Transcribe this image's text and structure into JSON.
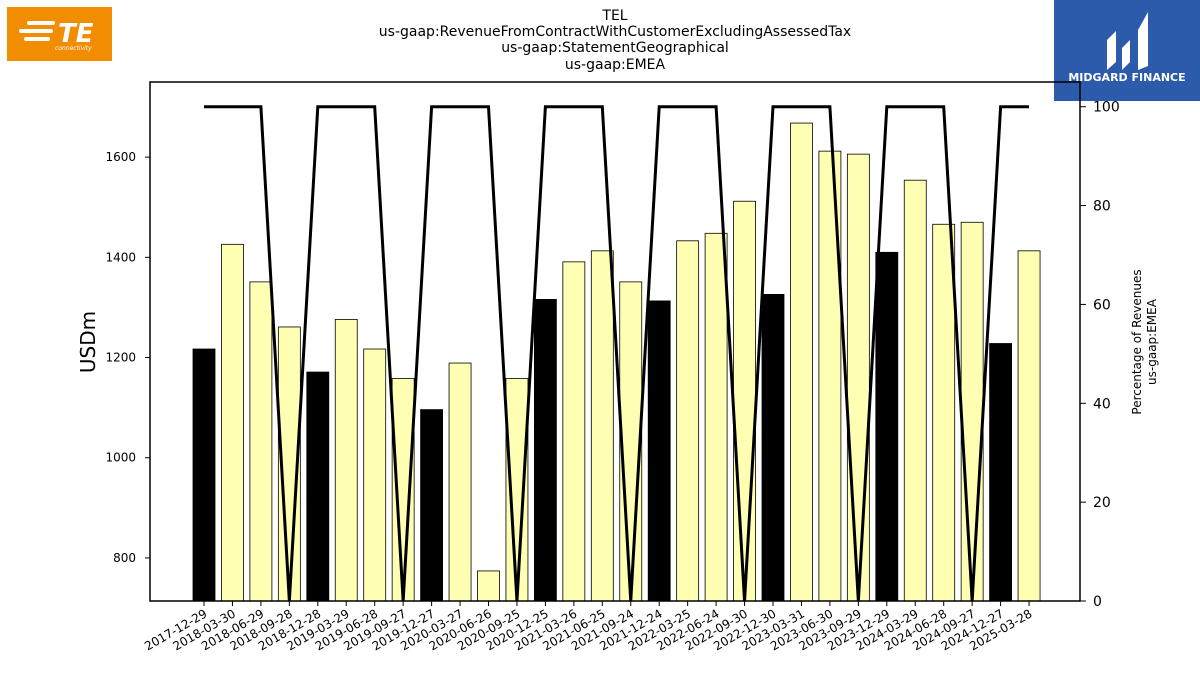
{
  "title_lines": [
    "TEL",
    "us-gaap:RevenueFromContractWithCustomerExcludingAssessedTax",
    "us-gaap:StatementGeographical",
    "us-gaap:EMEA"
  ],
  "logo_left": {
    "icon": "te-connectivity-logo",
    "text": "TE",
    "subtext": "connectivity",
    "color": "#F28C00"
  },
  "logo_right": {
    "icon": "midgard-finance-logo",
    "text": "MIDGARD FINANCE",
    "color": "#2B5BAA"
  },
  "chart_data": {
    "type": "bar",
    "categories": [
      "2017-12-29",
      "2018-03-30",
      "2018-06-29",
      "2018-09-28",
      "2018-12-28",
      "2019-03-29",
      "2019-06-28",
      "2019-09-27",
      "2019-12-27",
      "2020-03-27",
      "2020-06-26",
      "2020-09-25",
      "2020-12-25",
      "2021-03-26",
      "2021-06-25",
      "2021-09-24",
      "2021-12-24",
      "2022-03-25",
      "2022-06-24",
      "2022-09-30",
      "2022-12-30",
      "2023-03-31",
      "2023-06-30",
      "2023-09-29",
      "2023-12-29",
      "2024-03-29",
      "2024-06-28",
      "2024-09-27",
      "2024-12-27",
      "2025-03-28"
    ],
    "values": [
      1217,
      1426,
      1351,
      1261,
      1171,
      1276,
      1217,
      1158,
      1096,
      1189,
      774,
      1158,
      1316,
      1391,
      1413,
      1351,
      1313,
      1433,
      1448,
      1512,
      1326,
      1668,
      1612,
      1606,
      1410,
      1554,
      1466,
      1470,
      1228,
      1413
    ],
    "bar_colors": [
      "#000000",
      "#FFFFB3",
      "#FFFFB3",
      "#FFFFB3",
      "#000000",
      "#FFFFB3",
      "#FFFFB3",
      "#FFFFB3",
      "#000000",
      "#FFFFB3",
      "#FFFFB3",
      "#FFFFB3",
      "#000000",
      "#FFFFB3",
      "#FFFFB3",
      "#FFFFB3",
      "#000000",
      "#FFFFB3",
      "#FFFFB3",
      "#FFFFB3",
      "#000000",
      "#FFFFB3",
      "#FFFFB3",
      "#FFFFB3",
      "#000000",
      "#FFFFB3",
      "#FFFFB3",
      "#FFFFB3",
      "#000000",
      "#FFFFB3"
    ],
    "ylabel": "USDm",
    "ylim": [
      714,
      1750
    ],
    "yticks": [
      800,
      1000,
      1200,
      1400,
      1600
    ],
    "secondary_axis": {
      "type": "line",
      "ylabel_lines": [
        "Percentage of Revenues",
        "us-gaap:EMEA"
      ],
      "ylim": [
        0,
        105
      ],
      "yticks": [
        0,
        20,
        40,
        60,
        80,
        100
      ],
      "values": [
        100,
        100,
        100,
        0,
        100,
        100,
        100,
        0,
        100,
        100,
        100,
        0,
        100,
        100,
        100,
        0,
        100,
        100,
        100,
        0,
        100,
        100,
        100,
        0,
        100,
        100,
        100,
        0,
        100,
        100
      ],
      "color": "#000000"
    },
    "grid": false
  }
}
